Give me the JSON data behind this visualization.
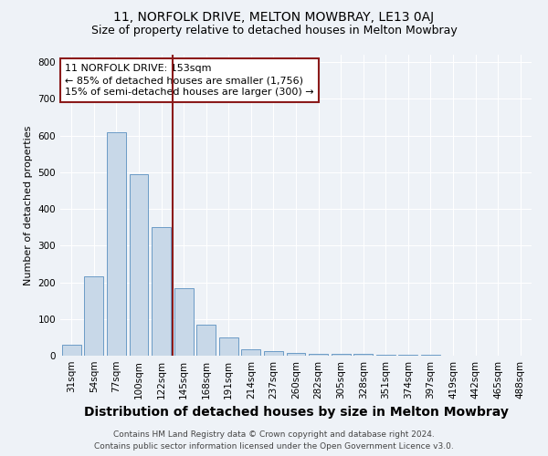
{
  "title": "11, NORFOLK DRIVE, MELTON MOWBRAY, LE13 0AJ",
  "subtitle": "Size of property relative to detached houses in Melton Mowbray",
  "xlabel": "Distribution of detached houses by size in Melton Mowbray",
  "ylabel": "Number of detached properties",
  "categories": [
    "31sqm",
    "54sqm",
    "77sqm",
    "100sqm",
    "122sqm",
    "145sqm",
    "168sqm",
    "191sqm",
    "214sqm",
    "237sqm",
    "260sqm",
    "282sqm",
    "305sqm",
    "328sqm",
    "351sqm",
    "374sqm",
    "397sqm",
    "419sqm",
    "442sqm",
    "465sqm",
    "488sqm"
  ],
  "values": [
    30,
    215,
    610,
    495,
    350,
    185,
    85,
    50,
    18,
    13,
    8,
    6,
    5,
    4,
    3,
    2,
    2,
    1,
    1,
    0,
    0
  ],
  "bar_color": "#c8d8e8",
  "bar_edge_color": "#5a90c0",
  "redline_after_index": 4,
  "highlight_color": "#8b1a1a",
  "ylim": [
    0,
    820
  ],
  "yticks": [
    0,
    100,
    200,
    300,
    400,
    500,
    600,
    700,
    800
  ],
  "annotation_title": "11 NORFOLK DRIVE: 153sqm",
  "annotation_line1": "← 85% of detached houses are smaller (1,756)",
  "annotation_line2": "15% of semi-detached houses are larger (300) →",
  "annotation_box_color": "#ffffff",
  "annotation_box_edge": "#8b1a1a",
  "footer_line1": "Contains HM Land Registry data © Crown copyright and database right 2024.",
  "footer_line2": "Contains public sector information licensed under the Open Government Licence v3.0.",
  "background_color": "#eef2f7",
  "grid_color": "#ffffff",
  "title_fontsize": 10,
  "subtitle_fontsize": 9,
  "xlabel_fontsize": 10,
  "ylabel_fontsize": 8,
  "tick_fontsize": 7.5,
  "annotation_fontsize": 8,
  "footer_fontsize": 6.5
}
